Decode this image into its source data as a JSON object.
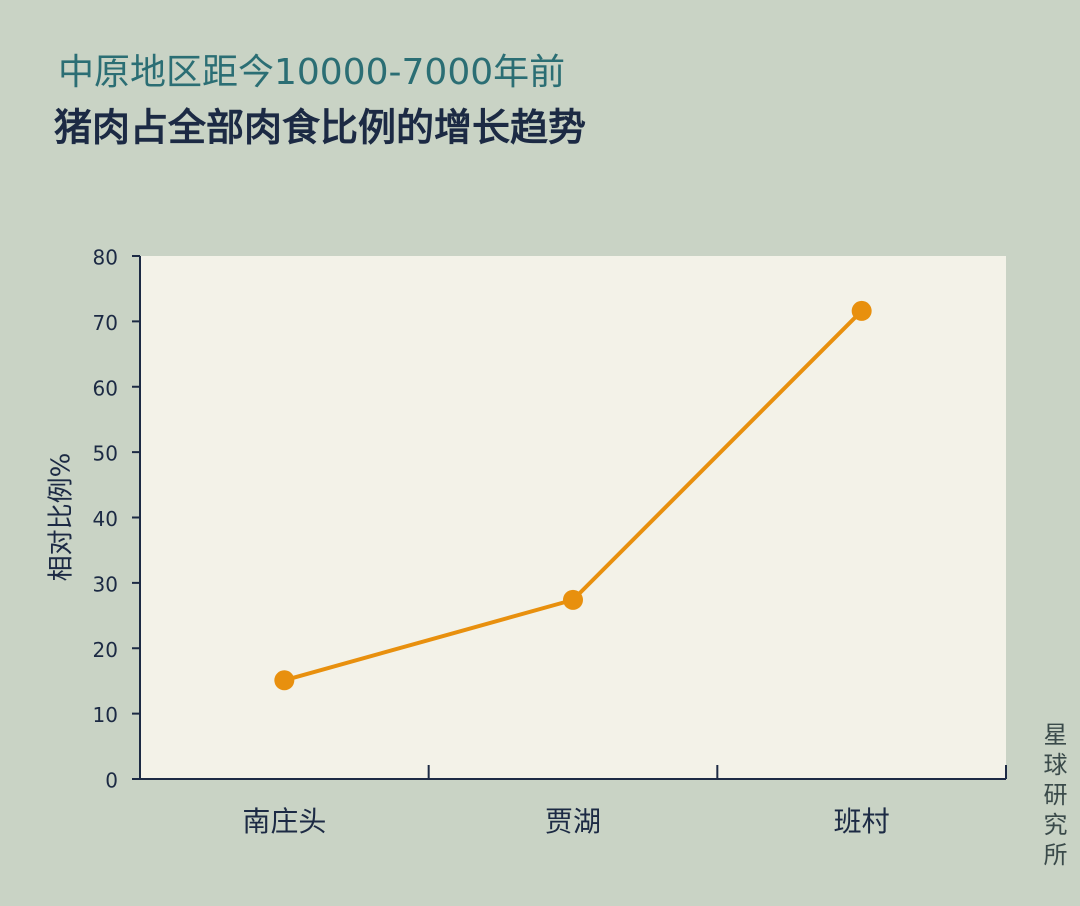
{
  "chart_data": {
    "type": "line",
    "subtitle": "中原地区距今10000-7000年前",
    "title": "猪肉占全部肉食比例的增长趋势",
    "y_label": "相对比例%",
    "source": "星球研究所",
    "categories": [
      "南庄头",
      "贾湖",
      "班村"
    ],
    "values": [
      15.1,
      27.4,
      71.6
    ],
    "color": "#e8900e",
    "ylim": [
      0,
      80
    ],
    "yticks": [
      0,
      10,
      20,
      30,
      40,
      50,
      60,
      70,
      80
    ],
    "grid": false
  }
}
